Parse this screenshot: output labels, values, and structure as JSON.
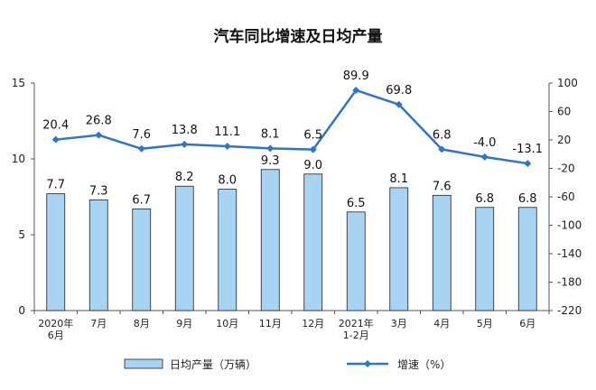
{
  "chart_data": {
    "type": "bar+line",
    "title": "汽车同比增速及日均产量",
    "categories": [
      [
        "2020年",
        "6月"
      ],
      [
        "7月"
      ],
      [
        "8月"
      ],
      [
        "9月"
      ],
      [
        "10月"
      ],
      [
        "11月"
      ],
      [
        "12月"
      ],
      [
        "2021年",
        "1-2月"
      ],
      [
        "3月"
      ],
      [
        "4月"
      ],
      [
        "5月"
      ],
      [
        "6月"
      ]
    ],
    "series": [
      {
        "name": "日均产量（万辆）",
        "type": "bar",
        "axis": "left",
        "color": "#a9d3f2",
        "values": [
          7.7,
          7.3,
          6.7,
          8.2,
          8.0,
          9.3,
          9.0,
          6.5,
          8.1,
          7.6,
          6.8,
          6.8
        ],
        "labels": [
          "7.7",
          "7.3",
          "6.7",
          "8.2",
          "8.0",
          "9.3",
          "9.0",
          "6.5",
          "8.1",
          "7.6",
          "6.8",
          "6.8"
        ]
      },
      {
        "name": "增速（%）",
        "type": "line",
        "axis": "right",
        "color": "#2e75c7",
        "values": [
          20.4,
          26.8,
          7.6,
          13.8,
          11.1,
          8.1,
          6.5,
          89.9,
          69.8,
          6.8,
          -4.0,
          -13.1
        ],
        "labels": [
          "20.4",
          "26.8",
          "7.6",
          "13.8",
          "11.1",
          "8.1",
          "6.5",
          "89.9",
          "69.8",
          "6.8",
          "-4.0",
          "-13.1"
        ]
      }
    ],
    "y_left": {
      "range": [
        0,
        15
      ],
      "ticks": [
        "0",
        "5",
        "10",
        "15"
      ]
    },
    "y_right": {
      "range": [
        -220,
        100
      ],
      "ticks": [
        "100",
        "60",
        "20",
        "-20",
        "-60",
        "-100",
        "-140",
        "-180",
        "-220"
      ]
    },
    "legend_position": "bottom"
  }
}
